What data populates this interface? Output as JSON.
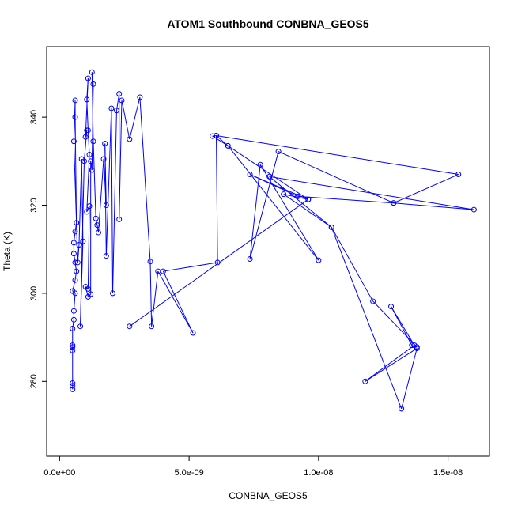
{
  "chart_data": {
    "type": "line",
    "title": "ATOM1 Southbound CONBNA_GEOS5",
    "xlabel": "CONBNA_GEOS5",
    "ylabel": "Theta (K)",
    "xlim": [
      -5e-10,
      1.66e-08
    ],
    "ylim": [
      263,
      356
    ],
    "xticks": [
      {
        "value": 0,
        "label": "0.0e+00"
      },
      {
        "value": 5e-09,
        "label": "5.0e-09"
      },
      {
        "value": 1e-08,
        "label": "1.0e-08"
      },
      {
        "value": 1.5e-08,
        "label": "1.5e-08"
      }
    ],
    "yticks": [
      {
        "value": 280,
        "label": "280"
      },
      {
        "value": 300,
        "label": "300"
      },
      {
        "value": 320,
        "label": "320"
      },
      {
        "value": 340,
        "label": "340"
      }
    ],
    "grid": false,
    "series_color": "#0000ff",
    "series": [
      {
        "style": "line+open-circle-markers",
        "points": [
          [
            5e-10,
            278.2
          ],
          [
            5e-10,
            279.0
          ],
          [
            5e-10,
            279.6
          ],
          [
            5e-10,
            287.0
          ],
          [
            5e-10,
            287.8
          ],
          [
            5e-10,
            288.2
          ],
          [
            5e-10,
            292.0
          ],
          [
            5.5e-10,
            294.0
          ],
          [
            5.5e-10,
            296.0
          ],
          [
            6e-10,
            300.0
          ],
          [
            5e-10,
            300.5
          ],
          [
            6e-10,
            303.0
          ],
          [
            6.5e-10,
            305.0
          ],
          [
            6e-10,
            307.0
          ],
          [
            5.5e-10,
            309.0
          ],
          [
            5.5e-10,
            311.5
          ],
          [
            6e-10,
            314.0
          ],
          [
            6.5e-10,
            316.0
          ],
          [
            5.5e-10,
            334.5
          ],
          [
            6e-10,
            343.8
          ],
          [
            6e-10,
            340.0
          ],
          [
            6.5e-10,
            316.0
          ],
          [
            7e-10,
            307.0
          ],
          [
            7.5e-10,
            311.0
          ],
          [
            8.5e-10,
            330.5
          ],
          [
            9e-10,
            311.8
          ],
          [
            8e-10,
            292.5
          ],
          [
            9.5e-10,
            330.0
          ],
          [
            1.05e-09,
            337.0
          ],
          [
            1e-09,
            335.5
          ],
          [
            1.1e-09,
            348.8
          ],
          [
            1.05e-09,
            344.0
          ],
          [
            1.1e-09,
            337.0
          ],
          [
            1.15e-09,
            331.5
          ],
          [
            1.05e-09,
            318.5
          ],
          [
            1.15e-09,
            319.8
          ],
          [
            1.1e-09,
            301.0
          ],
          [
            1e-09,
            301.5
          ],
          [
            1.1e-09,
            299.2
          ],
          [
            1.2e-09,
            299.8
          ],
          [
            1.2e-09,
            330.0
          ],
          [
            1.25e-09,
            328.0
          ],
          [
            1.3e-09,
            347.5
          ],
          [
            1.25e-09,
            350.2
          ],
          [
            1.3e-09,
            334.5
          ],
          [
            1.4e-09,
            317.0
          ],
          [
            1.45e-09,
            315.5
          ],
          [
            1.5e-09,
            313.8
          ],
          [
            1.7e-09,
            330.5
          ],
          [
            1.8e-09,
            320.0
          ],
          [
            1.75e-09,
            334.0
          ],
          [
            1.8e-09,
            308.5
          ],
          [
            2e-09,
            342.0
          ],
          [
            2.05e-09,
            300.0
          ],
          [
            2.2e-09,
            341.5
          ],
          [
            2.3e-09,
            345.3
          ],
          [
            2.3e-09,
            316.8
          ],
          [
            2.4e-09,
            343.8
          ],
          [
            2.7e-09,
            335.0
          ],
          [
            3.1e-09,
            344.5
          ],
          [
            3.5e-09,
            307.2
          ],
          [
            3.55e-09,
            292.5
          ],
          [
            3.8e-09,
            305.0
          ],
          [
            5.15e-09,
            291.0
          ],
          [
            4e-09,
            305.0
          ],
          [
            6.1e-09,
            307.0
          ],
          [
            6.05e-09,
            335.8
          ],
          [
            5.9e-09,
            335.7
          ],
          [
            6.5e-09,
            333.5
          ],
          [
            9.6e-09,
            321.3
          ],
          [
            7.35e-09,
            327.0
          ],
          [
            9.2e-09,
            322.0
          ],
          [
            1.29e-08,
            320.5
          ],
          [
            1.54e-08,
            327.0
          ],
          [
            6.05e-09,
            335.8
          ],
          [
            6.5e-09,
            333.5
          ],
          [
            1e-08,
            307.5
          ],
          [
            7.75e-09,
            329.2
          ],
          [
            7.35e-09,
            307.8
          ],
          [
            8.45e-09,
            332.2
          ],
          [
            1.29e-08,
            320.5
          ],
          [
            1.6e-08,
            319.0
          ],
          [
            8.1e-09,
            326.5
          ],
          [
            1.05e-08,
            315.0
          ],
          [
            1.32e-08,
            273.8
          ],
          [
            1.38e-08,
            287.5
          ],
          [
            1.18e-08,
            280.0
          ],
          [
            1.37e-08,
            288.2
          ],
          [
            1.28e-08,
            297.0
          ],
          [
            1.36e-08,
            288.2
          ],
          [
            1.38e-08,
            287.8
          ],
          [
            1.21e-08,
            298.2
          ],
          [
            1.05e-08,
            315.0
          ],
          [
            8.65e-09,
            322.5
          ],
          [
            9.6e-09,
            321.3
          ],
          [
            2.7e-09,
            292.5
          ]
        ]
      }
    ]
  }
}
